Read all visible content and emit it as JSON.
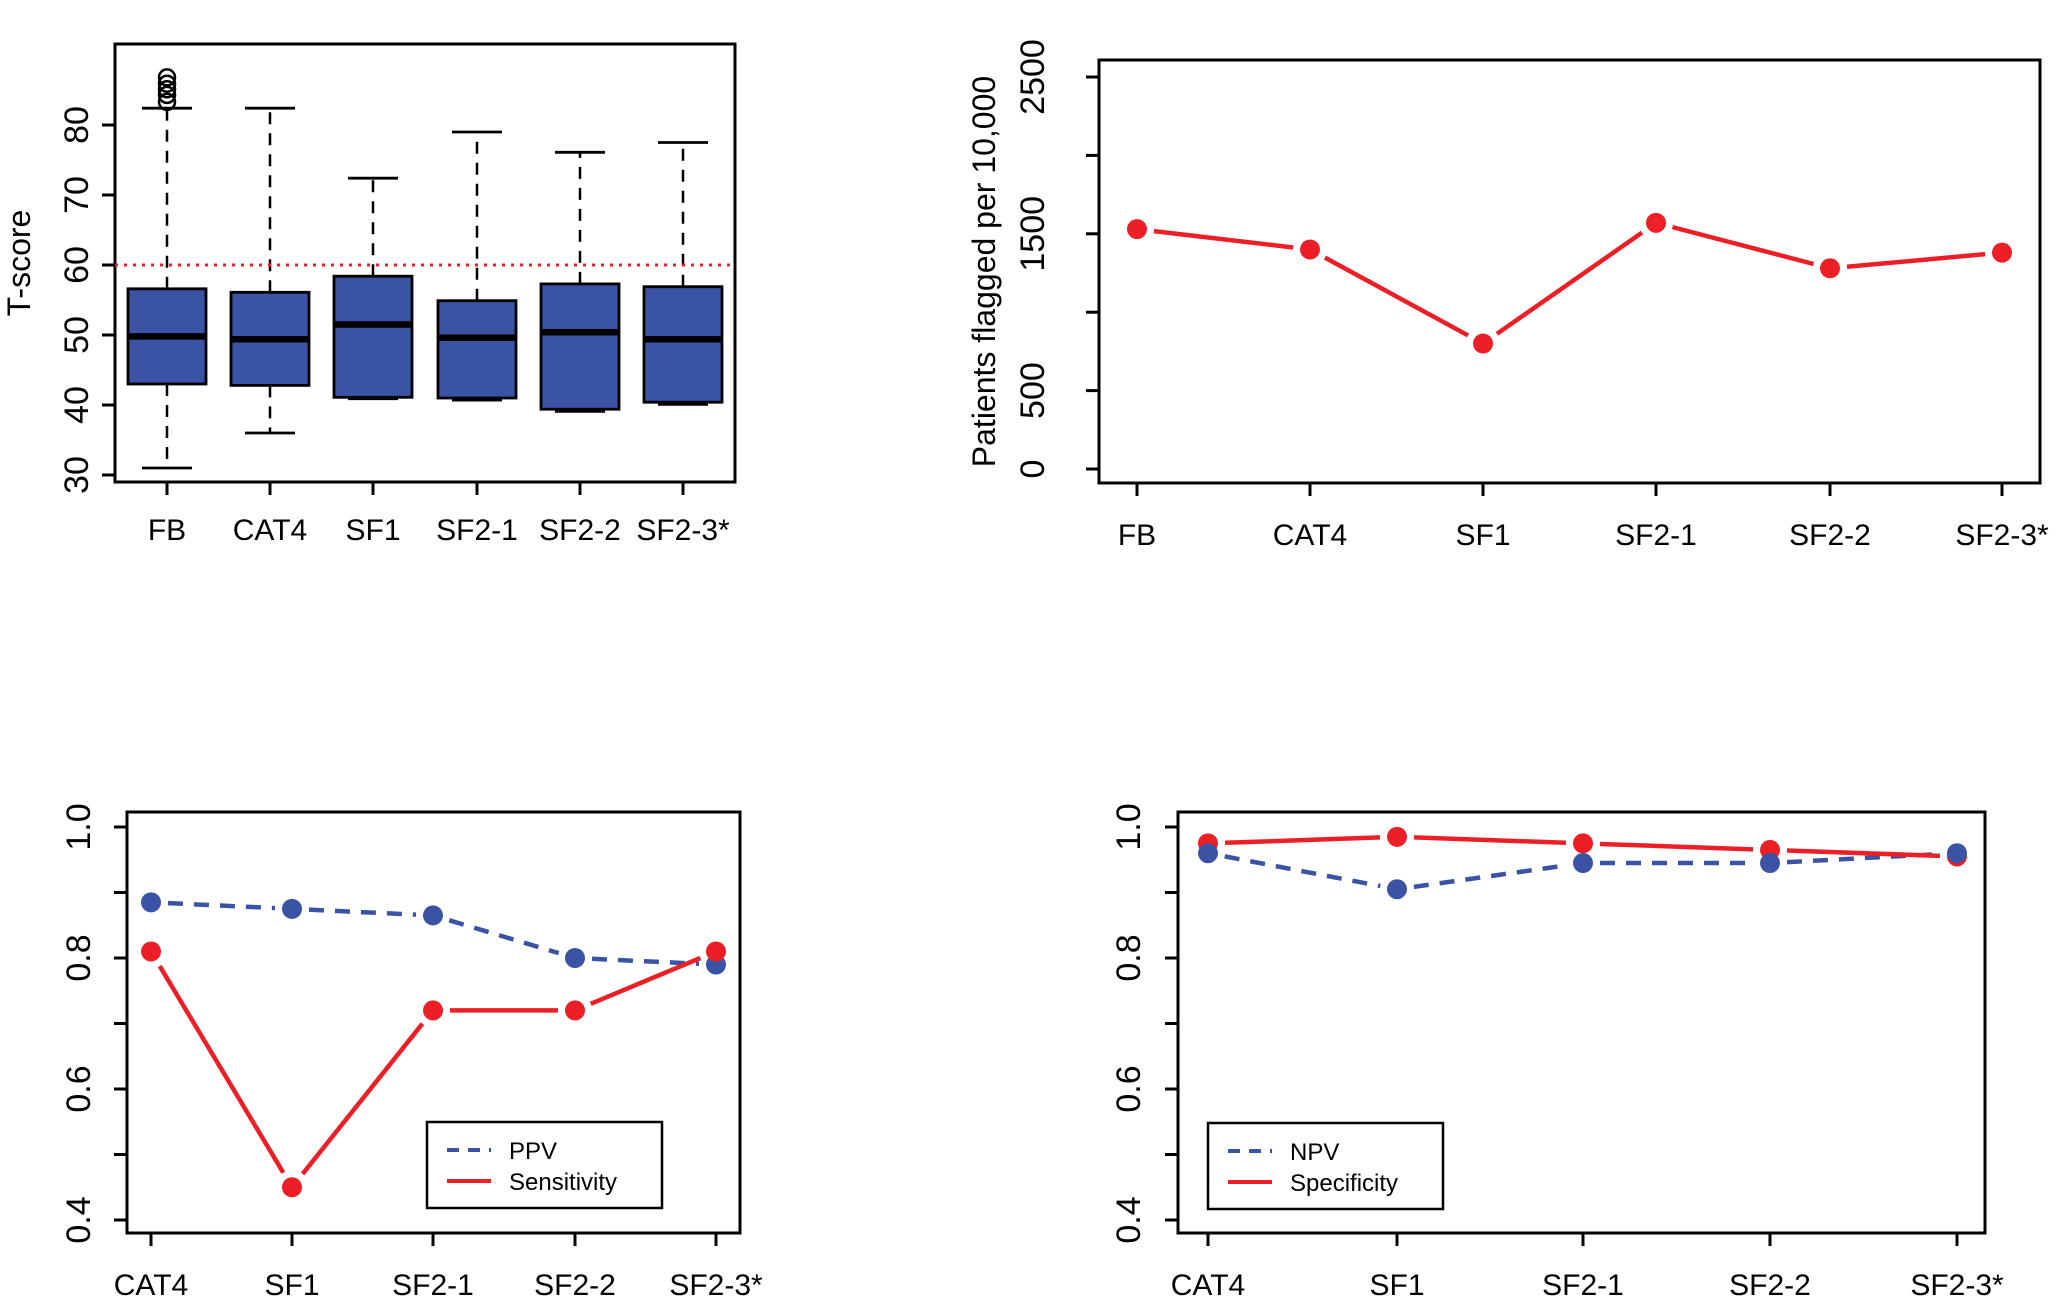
{
  "figure": {
    "background": "#ffffff",
    "axis_color": "#000000"
  },
  "colors": {
    "blue": "#3A53A4",
    "red": "#EC1F27",
    "black": "#000000",
    "white": "#ffffff"
  },
  "chart_data": [
    {
      "id": "tscore-boxplot",
      "type": "boxplot",
      "position": "top-left",
      "ylabel": "T-score",
      "categories": [
        "FB",
        "CAT4",
        "SF1",
        "SF2-1",
        "SF2-2",
        "SF2-3*"
      ],
      "ylim": [
        28,
        88
      ],
      "yticks_labeled": [
        {
          "v": 30,
          "label": "30"
        },
        {
          "v": 40,
          "label": "40"
        },
        {
          "v": 50,
          "label": "50"
        },
        {
          "v": 60,
          "label": "60"
        },
        {
          "v": 70,
          "label": "70"
        },
        {
          "v": 80,
          "label": "80"
        }
      ],
      "yticks_unlabeled": [],
      "box_fill": "#3A53A4",
      "threshold_line": {
        "value": 60,
        "style": "dotted",
        "color": "#EC1F27"
      },
      "boxes": [
        {
          "category": "FB",
          "min": 31.0,
          "q1": 43.0,
          "median": 49.8,
          "q3": 56.6,
          "max": 82.4,
          "outliers": [
            83.3,
            84.3,
            85.1,
            85.9,
            86.8
          ]
        },
        {
          "category": "CAT4",
          "min": 36.0,
          "q1": 42.8,
          "median": 49.4,
          "q3": 56.1,
          "max": 82.4,
          "outliers": []
        },
        {
          "category": "SF1",
          "min": 40.9,
          "q1": 41.1,
          "median": 51.5,
          "q3": 58.4,
          "max": 72.4,
          "outliers": []
        },
        {
          "category": "SF2-1",
          "min": 40.7,
          "q1": 41.0,
          "median": 49.6,
          "q3": 54.9,
          "max": 79.0,
          "outliers": []
        },
        {
          "category": "SF2-2",
          "min": 39.1,
          "q1": 39.4,
          "median": 50.4,
          "q3": 57.3,
          "max": 76.1,
          "outliers": []
        },
        {
          "category": "SF2-3*",
          "min": 40.1,
          "q1": 40.4,
          "median": 49.4,
          "q3": 56.9,
          "max": 77.5,
          "outliers": []
        }
      ]
    },
    {
      "id": "patients-flagged",
      "type": "line",
      "position": "top-right",
      "ylabel": "Patients flagged per 10,000",
      "categories": [
        "FB",
        "CAT4",
        "SF1",
        "SF2-1",
        "SF2-2",
        "SF2-3*"
      ],
      "ylim": [
        0,
        2600
      ],
      "yticks_labeled": [
        {
          "v": 0,
          "label": "0"
        },
        {
          "v": 500,
          "label": "500"
        },
        {
          "v": 1500,
          "label": "1500"
        },
        {
          "v": 2500,
          "label": "2500"
        }
      ],
      "yticks_unlabeled": [
        1000,
        2000
      ],
      "series": [
        {
          "name": "Patients flagged",
          "color": "#EC1F27",
          "style": "solid",
          "marker": "circle",
          "values": [
            1530,
            1400,
            800,
            1570,
            1280,
            1380
          ]
        }
      ]
    },
    {
      "id": "ppv-sensitivity",
      "type": "line",
      "position": "bottom-left",
      "ylabel": "",
      "categories": [
        "CAT4",
        "SF1",
        "SF2-1",
        "SF2-2",
        "SF2-3*"
      ],
      "ylim": [
        0.38,
        1.02
      ],
      "yticks_labeled": [
        {
          "v": 0.4,
          "label": "0.4"
        },
        {
          "v": 0.6,
          "label": "0.6"
        },
        {
          "v": 0.8,
          "label": "0.8"
        },
        {
          "v": 1.0,
          "label": "1.0"
        }
      ],
      "yticks_unlabeled": [
        0.5,
        0.7,
        0.9
      ],
      "series": [
        {
          "name": "PPV",
          "color": "#3A53A4",
          "style": "dashed",
          "marker": "circle",
          "values": [
            0.885,
            0.875,
            0.865,
            0.8,
            0.79
          ]
        },
        {
          "name": "Sensitivity",
          "color": "#EC1F27",
          "style": "solid",
          "marker": "circle",
          "values": [
            0.81,
            0.45,
            0.72,
            0.72,
            0.81
          ]
        }
      ],
      "legend": {
        "position": "inner-bottom-center",
        "entries": [
          "PPV",
          "Sensitivity"
        ]
      }
    },
    {
      "id": "npv-specificity",
      "type": "line",
      "position": "bottom-right",
      "ylabel": "",
      "categories": [
        "CAT4",
        "SF1",
        "SF2-1",
        "SF2-2",
        "SF2-3*"
      ],
      "ylim": [
        0.38,
        1.02
      ],
      "yticks_labeled": [
        {
          "v": 0.4,
          "label": "0.4"
        },
        {
          "v": 0.6,
          "label": "0.6"
        },
        {
          "v": 0.8,
          "label": "0.8"
        },
        {
          "v": 1.0,
          "label": "1.0"
        }
      ],
      "yticks_unlabeled": [
        0.5,
        0.7,
        0.9
      ],
      "series": [
        {
          "name": "NPV",
          "color": "#3A53A4",
          "style": "dashed",
          "marker": "circle",
          "values": [
            0.96,
            0.905,
            0.945,
            0.945,
            0.96
          ]
        },
        {
          "name": "Specificity",
          "color": "#EC1F27",
          "style": "solid",
          "marker": "circle",
          "values": [
            0.975,
            0.985,
            0.975,
            0.965,
            0.955
          ]
        }
      ],
      "legend": {
        "position": "inner-bottom-left",
        "entries": [
          "NPV",
          "Specificity"
        ]
      }
    }
  ]
}
